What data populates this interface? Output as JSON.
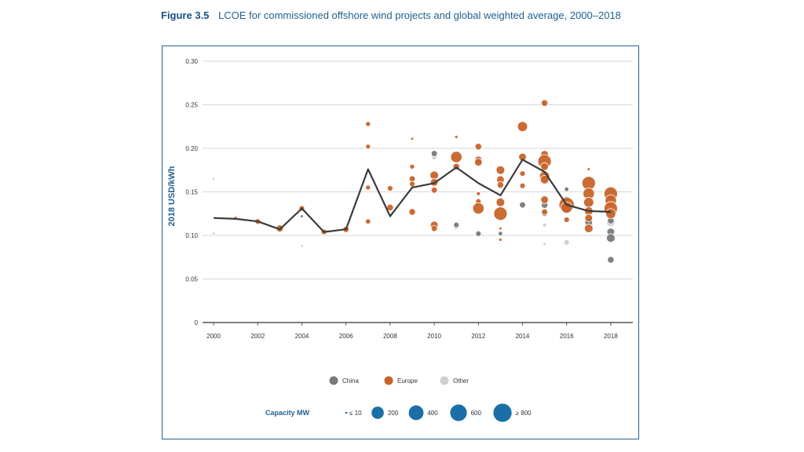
{
  "caption": {
    "figure": "Figure 3.5",
    "text": "LCOE for commissioned offshore wind projects and global weighted average, 2000–2018"
  },
  "chart_data": {
    "type": "scatter",
    "title": "LCOE for commissioned offshore wind projects and global weighted average, 2000–2018",
    "xlabel": "",
    "ylabel": "2018 USD/kWh",
    "xlim": [
      1999.5,
      2019
    ],
    "ylim": [
      0,
      0.3
    ],
    "x_ticks": [
      "2000",
      "2002",
      "2004",
      "2006",
      "2008",
      "2010",
      "2012",
      "2014",
      "2016",
      "2018"
    ],
    "y_ticks": [
      "0",
      "0.05",
      "0.10",
      "0.15",
      "0.20",
      "0.25",
      "0.30"
    ],
    "grid": true,
    "colors": {
      "China": "#7a7a7a",
      "Europe": "#c8642a",
      "Other": "#d0d0d0",
      "average": "#3b3b3b",
      "capacity": "#1a6fa8"
    },
    "weighted_average": {
      "x": [
        2000,
        2001,
        2002,
        2003,
        2004,
        2005,
        2006,
        2007,
        2008,
        2009,
        2010,
        2011,
        2012,
        2013,
        2014,
        2015,
        2016,
        2017,
        2018
      ],
      "y": [
        0.12,
        0.119,
        0.116,
        0.107,
        0.131,
        0.104,
        0.107,
        0.176,
        0.122,
        0.155,
        0.16,
        0.178,
        0.16,
        0.146,
        0.187,
        0.173,
        0.135,
        0.128,
        0.127
      ]
    },
    "series": [
      {
        "name": "Europe",
        "points": [
          [
            2001,
            0.12,
            8
          ],
          [
            2002,
            0.116,
            60
          ],
          [
            2003,
            0.108,
            120
          ],
          [
            2004,
            0.131,
            60
          ],
          [
            2005,
            0.104,
            60
          ],
          [
            2006,
            0.107,
            80
          ],
          [
            2007,
            0.228,
            40
          ],
          [
            2007,
            0.202,
            40
          ],
          [
            2007,
            0.155,
            40
          ],
          [
            2007,
            0.116,
            50
          ],
          [
            2008,
            0.154,
            60
          ],
          [
            2008,
            0.132,
            100
          ],
          [
            2009,
            0.211,
            5
          ],
          [
            2009,
            0.179,
            40
          ],
          [
            2009,
            0.165,
            80
          ],
          [
            2009,
            0.159,
            60
          ],
          [
            2009,
            0.127,
            100
          ],
          [
            2010,
            0.169,
            200
          ],
          [
            2010,
            0.161,
            150
          ],
          [
            2010,
            0.152,
            80
          ],
          [
            2010,
            0.112,
            150
          ],
          [
            2010,
            0.108,
            80
          ],
          [
            2011,
            0.213,
            8
          ],
          [
            2011,
            0.19,
            400
          ],
          [
            2011,
            0.179,
            100
          ],
          [
            2012,
            0.202,
            100
          ],
          [
            2012,
            0.187,
            120
          ],
          [
            2012,
            0.184,
            150
          ],
          [
            2012,
            0.148,
            20
          ],
          [
            2012,
            0.139,
            60
          ],
          [
            2012,
            0.131,
            400
          ],
          [
            2013,
            0.175,
            200
          ],
          [
            2013,
            0.164,
            150
          ],
          [
            2013,
            0.158,
            100
          ],
          [
            2013,
            0.138,
            200
          ],
          [
            2013,
            0.125,
            600
          ],
          [
            2013,
            0.108,
            5
          ],
          [
            2013,
            0.095,
            8
          ],
          [
            2014,
            0.225,
            300
          ],
          [
            2014,
            0.19,
            150
          ],
          [
            2014,
            0.171,
            60
          ],
          [
            2014,
            0.157,
            60
          ],
          [
            2015,
            0.252,
            100
          ],
          [
            2015,
            0.193,
            150
          ],
          [
            2015,
            0.185,
            600
          ],
          [
            2015,
            0.179,
            150
          ],
          [
            2015,
            0.168,
            300
          ],
          [
            2015,
            0.164,
            200
          ],
          [
            2015,
            0.141,
            150
          ],
          [
            2015,
            0.127,
            80
          ],
          [
            2016,
            0.135,
            800
          ],
          [
            2016,
            0.132,
            400
          ],
          [
            2016,
            0.118,
            60
          ],
          [
            2017,
            0.176,
            5
          ],
          [
            2017,
            0.16,
            600
          ],
          [
            2017,
            0.148,
            400
          ],
          [
            2017,
            0.138,
            300
          ],
          [
            2017,
            0.128,
            200
          ],
          [
            2017,
            0.12,
            150
          ],
          [
            2017,
            0.108,
            200
          ],
          [
            2018,
            0.148,
            600
          ],
          [
            2018,
            0.14,
            400
          ],
          [
            2018,
            0.131,
            600
          ],
          [
            2018,
            0.125,
            300
          ]
        ]
      },
      {
        "name": "China",
        "points": [
          [
            2004,
            0.122,
            5
          ],
          [
            2010,
            0.194,
            80
          ],
          [
            2011,
            0.112,
            60
          ],
          [
            2012,
            0.102,
            60
          ],
          [
            2013,
            0.102,
            30
          ],
          [
            2014,
            0.135,
            80
          ],
          [
            2015,
            0.135,
            100
          ],
          [
            2015,
            0.125,
            60
          ],
          [
            2016,
            0.153,
            30
          ],
          [
            2016,
            0.14,
            200
          ],
          [
            2017,
            0.115,
            150
          ],
          [
            2018,
            0.117,
            100
          ],
          [
            2018,
            0.104,
            150
          ],
          [
            2018,
            0.097,
            200
          ],
          [
            2018,
            0.072,
            100
          ]
        ]
      },
      {
        "name": "Other",
        "points": [
          [
            2000,
            0.165,
            5
          ],
          [
            2000,
            0.102,
            5
          ],
          [
            2004,
            0.088,
            5
          ],
          [
            2010,
            0.19,
            60
          ],
          [
            2011,
            0.11,
            60
          ],
          [
            2015,
            0.112,
            20
          ],
          [
            2015,
            0.09,
            5
          ],
          [
            2016,
            0.092,
            60
          ],
          [
            2017,
            0.112,
            200
          ],
          [
            2018,
            0.152,
            80
          ],
          [
            2018,
            0.128,
            150
          ],
          [
            2018,
            0.115,
            200
          ]
        ]
      }
    ],
    "legend_series": [
      "China",
      "Europe",
      "Other"
    ],
    "capacity_legend": {
      "title": "Capacity MW",
      "items": [
        {
          "label": "≤ 10",
          "mw": 10
        },
        {
          "label": "200",
          "mw": 200
        },
        {
          "label": "400",
          "mw": 400
        },
        {
          "label": "600",
          "mw": 600
        },
        {
          "label": "≥ 800",
          "mw": 800
        }
      ]
    }
  }
}
